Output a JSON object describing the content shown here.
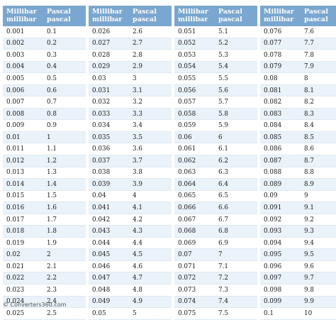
{
  "headers": {
    "col1_line1": "Millibar",
    "col1_line2": "millibar",
    "col2_line1": "Pascal",
    "col2_line2": "pascal"
  },
  "blocks": [
    {
      "rows": [
        [
          "0.001",
          "0.1"
        ],
        [
          "0.002",
          "0.2"
        ],
        [
          "0.003",
          "0.3"
        ],
        [
          "0.004",
          "0.4"
        ],
        [
          "0.005",
          "0.5"
        ],
        [
          "0.006",
          "0.6"
        ],
        [
          "0.007",
          "0.7"
        ],
        [
          "0.008",
          "0.8"
        ],
        [
          "0.009",
          "0.9"
        ],
        [
          "0.01",
          "1"
        ],
        [
          "0.011",
          "1.1"
        ],
        [
          "0.012",
          "1.2"
        ],
        [
          "0.013",
          "1.3"
        ],
        [
          "0.014",
          "1.4"
        ],
        [
          "0.015",
          "1.5"
        ],
        [
          "0.016",
          "1.6"
        ],
        [
          "0.017",
          "1.7"
        ],
        [
          "0.018",
          "1.8"
        ],
        [
          "0.019",
          "1.9"
        ],
        [
          "0.02",
          "2"
        ],
        [
          "0.021",
          "2.1"
        ],
        [
          "0.022",
          "2.2"
        ],
        [
          "0.023",
          "2.3"
        ],
        [
          "0.024",
          "2.4"
        ],
        [
          "0.025",
          "2.5"
        ]
      ]
    },
    {
      "rows": [
        [
          "0.026",
          "2.6"
        ],
        [
          "0.027",
          "2.7"
        ],
        [
          "0.028",
          "2.8"
        ],
        [
          "0.029",
          "2.9"
        ],
        [
          "0.03",
          "3"
        ],
        [
          "0.031",
          "3.1"
        ],
        [
          "0.032",
          "3.2"
        ],
        [
          "0.033",
          "3.3"
        ],
        [
          "0.034",
          "3.4"
        ],
        [
          "0.035",
          "3.5"
        ],
        [
          "0.036",
          "3.6"
        ],
        [
          "0.037",
          "3.7"
        ],
        [
          "0.038",
          "3.8"
        ],
        [
          "0.039",
          "3.9"
        ],
        [
          "0.04",
          "4"
        ],
        [
          "0.041",
          "4.1"
        ],
        [
          "0.042",
          "4.2"
        ],
        [
          "0.043",
          "4.3"
        ],
        [
          "0.044",
          "4.4"
        ],
        [
          "0.045",
          "4.5"
        ],
        [
          "0.046",
          "4.6"
        ],
        [
          "0.047",
          "4.7"
        ],
        [
          "0.048",
          "4.8"
        ],
        [
          "0.049",
          "4.9"
        ],
        [
          "0.05",
          "5"
        ]
      ]
    },
    {
      "rows": [
        [
          "0.051",
          "5.1"
        ],
        [
          "0.052",
          "5.2"
        ],
        [
          "0.053",
          "5.3"
        ],
        [
          "0.054",
          "5.4"
        ],
        [
          "0.055",
          "5.5"
        ],
        [
          "0.056",
          "5.6"
        ],
        [
          "0.057",
          "5.7"
        ],
        [
          "0.058",
          "5.8"
        ],
        [
          "0.059",
          "5.9"
        ],
        [
          "0.06",
          "6"
        ],
        [
          "0.061",
          "6.1"
        ],
        [
          "0.062",
          "6.2"
        ],
        [
          "0.063",
          "6.3"
        ],
        [
          "0.064",
          "6.4"
        ],
        [
          "0.065",
          "6.5"
        ],
        [
          "0.066",
          "6.6"
        ],
        [
          "0.067",
          "6.7"
        ],
        [
          "0.068",
          "6.8"
        ],
        [
          "0.069",
          "6.9"
        ],
        [
          "0.07",
          "7"
        ],
        [
          "0.071",
          "7.1"
        ],
        [
          "0.072",
          "7.2"
        ],
        [
          "0.073",
          "7.3"
        ],
        [
          "0.074",
          "7.4"
        ],
        [
          "0.075",
          "7.5"
        ]
      ]
    },
    {
      "rows": [
        [
          "0.076",
          "7.6"
        ],
        [
          "0.077",
          "7.7"
        ],
        [
          "0.078",
          "7.8"
        ],
        [
          "0.079",
          "7.9"
        ],
        [
          "0.08",
          "8"
        ],
        [
          "0.081",
          "8.1"
        ],
        [
          "0.082",
          "8.2"
        ],
        [
          "0.083",
          "8.3"
        ],
        [
          "0.084",
          "8.4"
        ],
        [
          "0.085",
          "8.5"
        ],
        [
          "0.086",
          "8.6"
        ],
        [
          "0.087",
          "8.7"
        ],
        [
          "0.088",
          "8.8"
        ],
        [
          "0.089",
          "8.9"
        ],
        [
          "0.09",
          "9"
        ],
        [
          "0.091",
          "9.1"
        ],
        [
          "0.092",
          "9.2"
        ],
        [
          "0.093",
          "9.3"
        ],
        [
          "0.094",
          "9.4"
        ],
        [
          "0.095",
          "9.5"
        ],
        [
          "0.096",
          "9.6"
        ],
        [
          "0.097",
          "9.7"
        ],
        [
          "0.098",
          "9.8"
        ],
        [
          "0.099",
          "9.9"
        ],
        [
          "0.1",
          "10"
        ]
      ]
    }
  ],
  "credit": "© Converters360.com",
  "colors": {
    "header_bg": "#7aa7d0",
    "header_text": "#ffffff",
    "alt_row_bg": "#eaf2fa"
  }
}
